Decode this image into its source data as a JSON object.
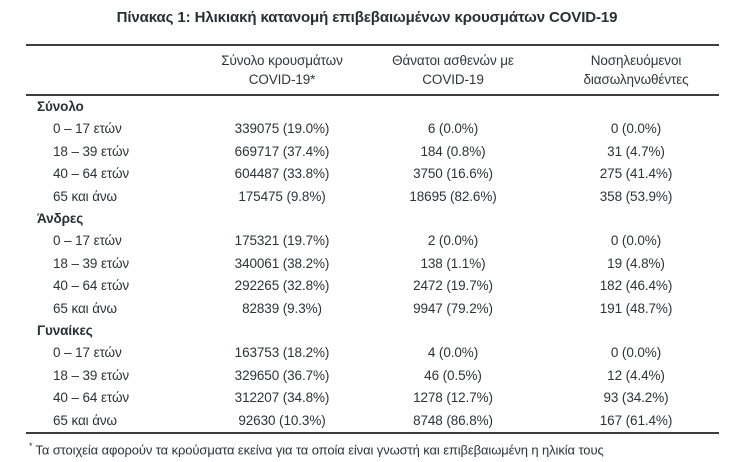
{
  "title": "Πίνακας 1: Ηλικιακή κατανομή επιβεβαιωμένων κρουσμάτων COVID-19",
  "table": {
    "columns": [
      {
        "line1": "Σύνολο κρουσμάτων",
        "line2": "COVID-19*"
      },
      {
        "line1": "Θάνατοι ασθενών με",
        "line2": "COVID-19"
      },
      {
        "line1": "Νοσηλευόμενοι",
        "line2": "διασωληνωθέντες"
      }
    ],
    "sections": [
      {
        "label": "Σύνολο",
        "rows": [
          {
            "age": "0 – 17 ετών",
            "cases": "339075 (19.0%)",
            "deaths": "6 (0.0%)",
            "intubated": "0 (0.0%)"
          },
          {
            "age": "18 – 39 ετών",
            "cases": "669717 (37.4%)",
            "deaths": "184 (0.8%)",
            "intubated": "31 (4.7%)"
          },
          {
            "age": "40 – 64 ετών",
            "cases": "604487 (33.8%)",
            "deaths": "3750 (16.6%)",
            "intubated": "275 (41.4%)"
          },
          {
            "age": "65 και άνω",
            "cases": "175475 (9.8%)",
            "deaths": "18695 (82.6%)",
            "intubated": "358 (53.9%)"
          }
        ]
      },
      {
        "label": "Άνδρες",
        "rows": [
          {
            "age": "0 – 17 ετών",
            "cases": "175321 (19.7%)",
            "deaths": "2 (0.0%)",
            "intubated": "0 (0.0%)"
          },
          {
            "age": "18 – 39 ετών",
            "cases": "340061 (38.2%)",
            "deaths": "138 (1.1%)",
            "intubated": "19 (4.8%)"
          },
          {
            "age": "40 – 64 ετών",
            "cases": "292265 (32.8%)",
            "deaths": "2472 (19.7%)",
            "intubated": "182 (46.4%)"
          },
          {
            "age": "65 και άνω",
            "cases": "82839 (9.3%)",
            "deaths": "9947 (79.2%)",
            "intubated": "191 (48.7%)"
          }
        ]
      },
      {
        "label": "Γυναίκες",
        "rows": [
          {
            "age": "0 – 17 ετών",
            "cases": "163753 (18.2%)",
            "deaths": "4 (0.0%)",
            "intubated": "0 (0.0%)"
          },
          {
            "age": "18 – 39 ετών",
            "cases": "329650 (36.7%)",
            "deaths": "46 (0.5%)",
            "intubated": "12 (4.4%)"
          },
          {
            "age": "40 – 64 ετών",
            "cases": "312207 (34.8%)",
            "deaths": "1278 (12.7%)",
            "intubated": "93 (34.2%)"
          },
          {
            "age": "65 και άνω",
            "cases": "92630 (10.3%)",
            "deaths": "8748 (86.8%)",
            "intubated": "167 (61.4%)"
          }
        ]
      }
    ]
  },
  "footnote": {
    "marker": "*",
    "text": "Τα στοιχεία αφορούν τα κρούσματα εκείνα για τα οποία είναι γνωστή και επιβεβαιωμένη η ηλικία τους"
  },
  "colors": {
    "text": "#2f323a",
    "rule": "#3e3e40",
    "background": "#ffffff"
  }
}
